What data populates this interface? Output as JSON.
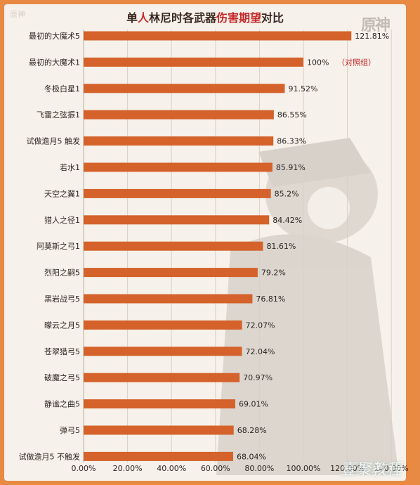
{
  "title_parts": {
    "p1": "单",
    "p2": "人",
    "p3": "林尼时各武器",
    "p4": "伤害期望",
    "p5": "对比"
  },
  "watermark_tl": "原神",
  "logo_text": "原神",
  "corner_watermark": "壹聚教程",
  "control_note": "（对照组）",
  "colors": {
    "bar": "#d4622a",
    "highlight": "#c62828",
    "text": "#2d2522",
    "grid": "#d8d0c8",
    "frame": "#e98a44"
  },
  "chart_data": {
    "type": "bar",
    "orientation": "horizontal",
    "title": "单人林尼时各武器伤害期望对比",
    "categories": [
      "最初的大魔术5",
      "最初的大魔术1",
      "冬极白星1",
      "飞雷之弦振1",
      "试做澹月5 触发",
      "若水1",
      "天空之翼1",
      "猎人之径1",
      "阿莫斯之弓1",
      "烈阳之嗣5",
      "黑岩战弓5",
      "曚云之月5",
      "苍翠猎弓5",
      "破魔之弓5",
      "静谧之曲5",
      "弹弓5",
      "试做澹月5 不触发"
    ],
    "values": [
      121.81,
      100,
      91.52,
      86.55,
      86.33,
      85.91,
      85.2,
      84.42,
      81.61,
      79.2,
      76.81,
      72.07,
      72.04,
      70.97,
      69.01,
      68.28,
      68.04
    ],
    "value_labels": [
      "121.81%",
      "100%",
      "91.52%",
      "86.55%",
      "86.33%",
      "85.91%",
      "85.2%",
      "84.42%",
      "81.61%",
      "79.2%",
      "76.81%",
      "72.07%",
      "72.04%",
      "70.97%",
      "69.01%",
      "68.28%",
      "68.04%"
    ],
    "x_ticks": [
      "0.00%",
      "20.00%",
      "40.00%",
      "60.00%",
      "80.00%",
      "100.00%",
      "120.00%",
      "140.00%"
    ],
    "xlim": [
      0,
      140
    ],
    "grid": true,
    "control_group_index": 1
  }
}
